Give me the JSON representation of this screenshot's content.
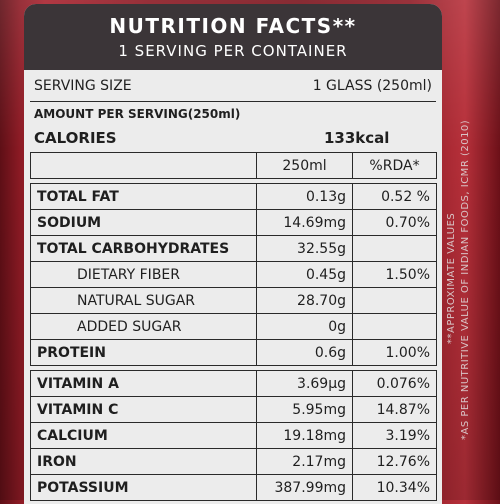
{
  "header": {
    "title": "NUTRITION FACTS**",
    "subtitle": "1 SERVING PER CONTAINER"
  },
  "serving": {
    "label": "SERVING SIZE",
    "value": "1 GLASS (250ml)"
  },
  "amount_per_serving": "AMOUNT PER SERVING(250ml)",
  "calories": {
    "label": "CALORIES",
    "value": "133kcal"
  },
  "table": {
    "columns": [
      "250ml",
      "%RDA*"
    ],
    "rows": [
      {
        "name": "TOTAL FAT",
        "value": "0.13g",
        "rda": "0.52 %"
      },
      {
        "name": "SODIUM",
        "value": "14.69mg",
        "rda": "0.70%"
      },
      {
        "name": "TOTAL CARBOHYDRATES",
        "value": "32.55g",
        "rda": ""
      },
      {
        "name": "DIETARY FIBER",
        "value": "0.45g",
        "rda": "1.50%"
      },
      {
        "name": "NATURAL SUGAR",
        "value": "28.70g",
        "rda": ""
      },
      {
        "name": "ADDED SUGAR",
        "value": "0g",
        "rda": ""
      },
      {
        "name": "PROTEIN",
        "value": "0.6g",
        "rda": "1.00%"
      },
      {
        "name": "VITAMIN A",
        "value": "3.69µg",
        "rda": "0.076%"
      },
      {
        "name": "VITAMIN C",
        "value": "5.95mg",
        "rda": "14.87%"
      },
      {
        "name": "CALCIUM",
        "value": "19.18mg",
        "rda": "3.19%"
      },
      {
        "name": "IRON",
        "value": "2.17mg",
        "rda": "12.76%"
      },
      {
        "name": "POTASSIUM",
        "value": "387.99mg",
        "rda": "10.34%"
      }
    ]
  },
  "side_notes": {
    "note1": "**APPROXIMATE VALUES",
    "note2": "*AS PER NUTRITIVE VALUE OF INDIAN FOODS, ICMR (2010)"
  },
  "colors": {
    "bottle": "#8a1923",
    "label_bg": "#ececec",
    "header_bg": "#3b3538"
  }
}
